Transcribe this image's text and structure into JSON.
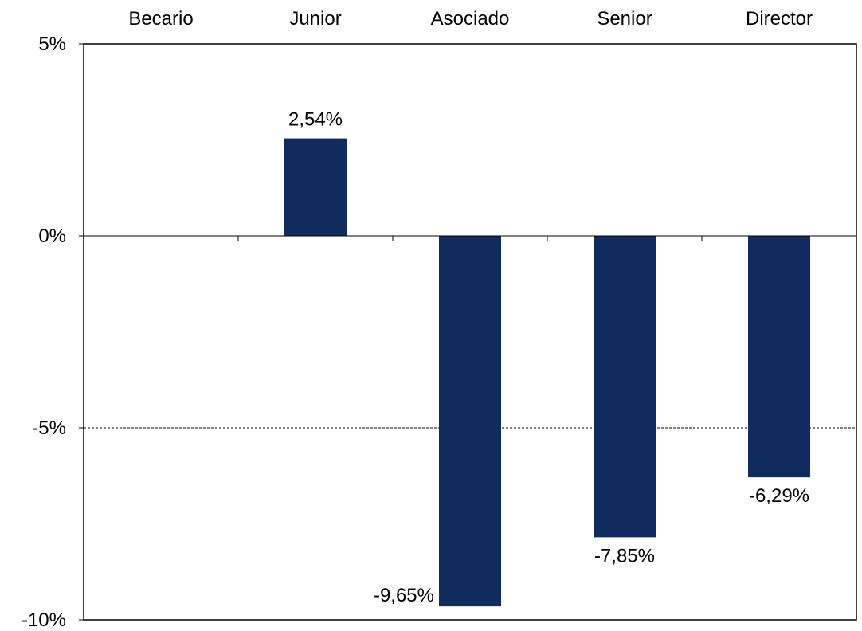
{
  "chart_data": {
    "type": "bar",
    "categories": [
      "Becario",
      "Junior",
      "Asociado",
      "Senior",
      "Director"
    ],
    "values": [
      null,
      2.54,
      -9.65,
      -7.85,
      -6.29
    ],
    "data_labels": [
      "",
      "2,54%",
      "-9,65%",
      "-7,85%",
      "-6,29%"
    ],
    "title": "",
    "xlabel": "",
    "ylabel": "",
    "ylim": [
      -10,
      5
    ],
    "y_ticks": [
      5,
      0,
      -5,
      -10
    ],
    "y_tick_labels": [
      "5%",
      "0%",
      "-5%",
      "-10%"
    ],
    "category_axis_position": "top",
    "gridlines": [
      -5
    ],
    "bar_color": "#102C5F"
  }
}
